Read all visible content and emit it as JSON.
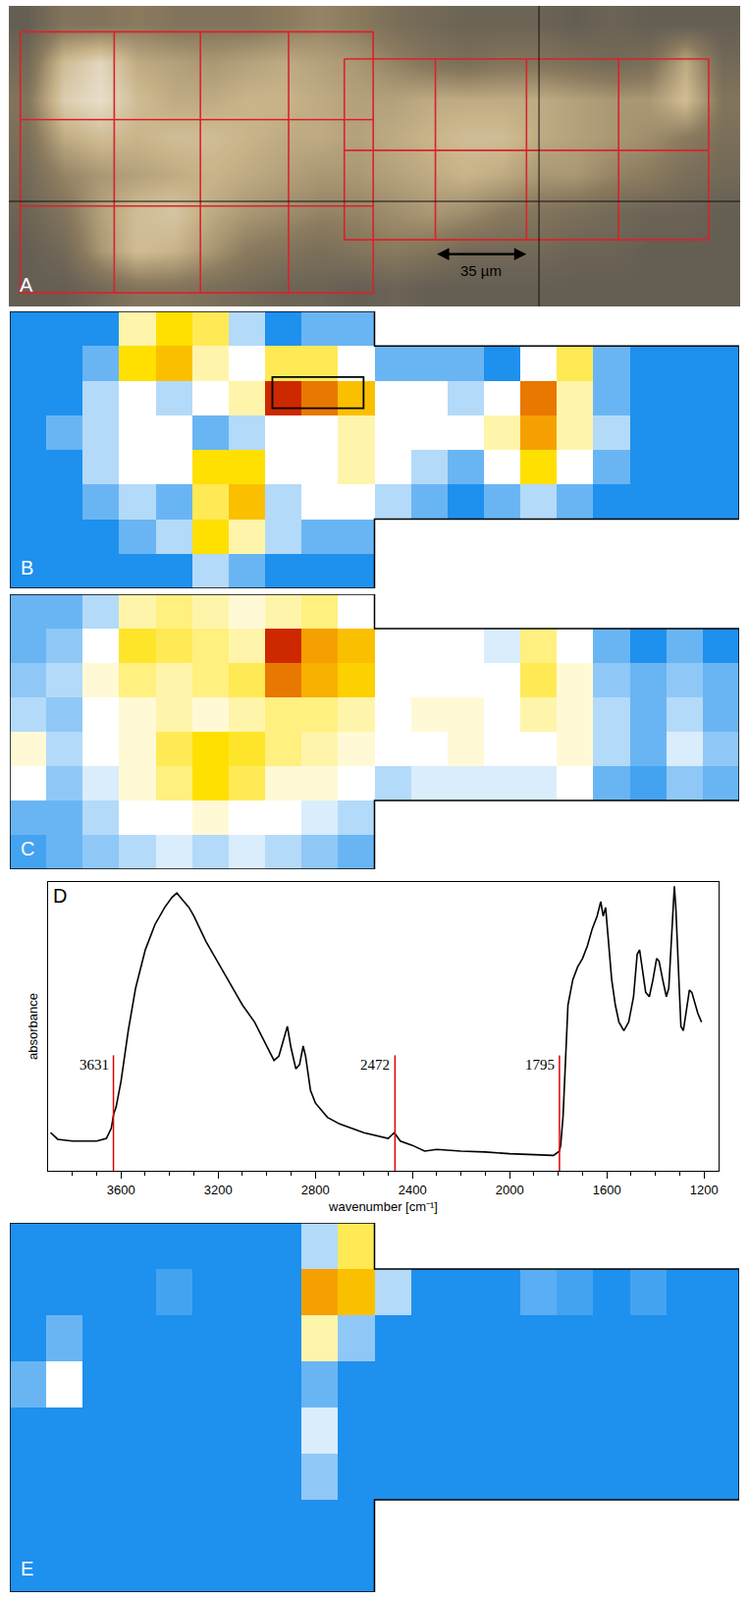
{
  "chart_data": [
    {
      "type": "image",
      "label": "A",
      "xlim": [
        0,
        281
      ],
      "ylim": [
        0,
        115
      ],
      "zlim": [
        0,
        1
      ],
      "tick_labels": false,
      "brightness": [
        [
          0.1,
          0.3,
          0.3,
          0.35,
          0.3,
          0.3,
          0.3,
          0.35,
          0.4,
          0.35,
          0.25,
          0.2,
          0.15,
          0.15,
          0.15,
          0.1,
          0.15,
          0.1,
          0.1,
          0.1
        ],
        [
          0.2,
          0.7,
          0.85,
          0.6,
          0.55,
          0.5,
          0.55,
          0.6,
          0.55,
          0.5,
          0.4,
          0.3,
          0.25,
          0.3,
          0.3,
          0.25,
          0.2,
          0.25,
          0.6,
          0.2
        ],
        [
          0.3,
          0.8,
          0.9,
          0.7,
          0.6,
          0.6,
          0.65,
          0.65,
          0.6,
          0.55,
          0.55,
          0.6,
          0.6,
          0.6,
          0.6,
          0.55,
          0.5,
          0.5,
          0.7,
          0.3
        ],
        [
          0.25,
          0.6,
          0.7,
          0.65,
          0.7,
          0.7,
          0.65,
          0.6,
          0.6,
          0.55,
          0.6,
          0.65,
          0.7,
          0.7,
          0.6,
          0.55,
          0.5,
          0.45,
          0.35,
          0.25
        ],
        [
          0.2,
          0.4,
          0.5,
          0.55,
          0.6,
          0.65,
          0.6,
          0.55,
          0.5,
          0.5,
          0.55,
          0.6,
          0.65,
          0.6,
          0.5,
          0.5,
          0.4,
          0.35,
          0.25,
          0.2
        ],
        [
          0.15,
          0.3,
          0.55,
          0.7,
          0.75,
          0.6,
          0.5,
          0.45,
          0.4,
          0.4,
          0.45,
          0.5,
          0.45,
          0.35,
          0.3,
          0.25,
          0.2,
          0.15,
          0.15,
          0.1
        ],
        [
          0.1,
          0.2,
          0.5,
          0.7,
          0.65,
          0.5,
          0.35,
          0.3,
          0.25,
          0.3,
          0.35,
          0.3,
          0.2,
          0.2,
          0.2,
          0.15,
          0.15,
          0.1,
          0.1,
          0.1
        ],
        [
          0.1,
          0.1,
          0.2,
          0.3,
          0.3,
          0.25,
          0.2,
          0.15,
          0.15,
          0.1,
          0.15,
          0.1,
          0.1,
          0.1,
          0.1,
          0.1,
          0.1,
          0.1,
          0.1,
          0.1
        ]
      ],
      "grids": [
        {
          "x": [
            4.4,
            40.5,
            73.6,
            107.5,
            140
          ],
          "y": [
            9.9,
            43.5,
            76.6,
            109.8
          ]
        },
        {
          "x": [
            128.9,
            163.9,
            198.9,
            234.3,
            268.9
          ],
          "y": [
            20.3,
            55.3,
            89.5
          ]
        }
      ],
      "crosshair": {
        "x": 203.7,
        "y": 74.8
      },
      "scale_bar": {
        "label": "35 µm",
        "length": 35,
        "x": 163.9,
        "y": 95
      }
    },
    {
      "type": "heatmap",
      "label": "B",
      "zlim": [
        0,
        1
      ],
      "tick_labels": false,
      "z": [
        [
          0,
          0,
          0,
          0.4,
          0.6,
          0.5,
          0.2,
          0,
          0.1,
          0.1,
          null,
          null,
          null,
          null,
          null,
          null,
          null,
          null,
          null,
          null
        ],
        [
          0,
          0,
          0.1,
          0.6,
          0.7,
          0.4,
          0.3,
          0.5,
          0.5,
          0.3,
          0.1,
          0.1,
          0.1,
          0,
          0.3,
          0.5,
          0.1,
          0,
          0,
          0
        ],
        [
          0,
          0,
          0.2,
          0.3,
          0.2,
          0.3,
          0.4,
          0.95,
          0.85,
          0.7,
          0.3,
          0.3,
          0.2,
          0.3,
          0.85,
          0.4,
          0.1,
          0,
          0,
          0
        ],
        [
          0,
          0.1,
          0.2,
          0.3,
          0.3,
          0.1,
          0.2,
          0.3,
          0.3,
          0.4,
          0.3,
          0.3,
          0.3,
          0.4,
          0.8,
          0.4,
          0.2,
          0,
          0,
          0
        ],
        [
          0,
          0,
          0.2,
          0.3,
          0.3,
          0.6,
          0.6,
          0.3,
          0.3,
          0.4,
          0.3,
          0.2,
          0.1,
          0.3,
          0.6,
          0.3,
          0.1,
          0,
          0,
          0
        ],
        [
          0,
          0,
          0.1,
          0.2,
          0.1,
          0.5,
          0.7,
          0.2,
          0.3,
          0.3,
          0.2,
          0.1,
          0,
          0.1,
          0.2,
          0.1,
          0,
          0,
          0,
          0
        ],
        [
          0,
          0,
          0,
          0.1,
          0.2,
          0.6,
          0.4,
          0.2,
          0.1,
          0.1,
          null,
          null,
          null,
          null,
          null,
          null,
          null,
          null,
          null,
          null
        ],
        [
          0,
          0,
          0,
          0,
          0,
          0.2,
          0.1,
          0,
          0,
          0,
          null,
          null,
          null,
          null,
          null,
          null,
          null,
          null,
          null,
          null
        ]
      ],
      "highlight_box": {
        "x": [
          6.7,
          9.2
        ],
        "y": [
          1.4,
          2.3
        ]
      }
    },
    {
      "type": "heatmap",
      "label": "C",
      "zlim": [
        0,
        1
      ],
      "tick_labels": false,
      "z": [
        [
          0.1,
          0.1,
          0.2,
          0.4,
          0.45,
          0.4,
          0.35,
          0.4,
          0.45,
          0.3,
          null,
          null,
          null,
          null,
          null,
          null,
          null,
          null,
          null,
          null
        ],
        [
          0.1,
          0.15,
          0.3,
          0.55,
          0.5,
          0.45,
          0.4,
          0.95,
          0.8,
          0.7,
          0.3,
          0.3,
          0.3,
          0.25,
          0.45,
          0.3,
          0.1,
          0,
          0.1,
          0
        ],
        [
          0.15,
          0.2,
          0.35,
          0.45,
          0.4,
          0.45,
          0.5,
          0.85,
          0.75,
          0.65,
          0.3,
          0.3,
          0.3,
          0.3,
          0.5,
          0.35,
          0.15,
          0.1,
          0.15,
          0.1
        ],
        [
          0.2,
          0.15,
          0.3,
          0.35,
          0.4,
          0.35,
          0.4,
          0.45,
          0.45,
          0.4,
          0.3,
          0.35,
          0.35,
          0.3,
          0.4,
          0.35,
          0.2,
          0.1,
          0.2,
          0.1
        ],
        [
          0.35,
          0.2,
          0.3,
          0.35,
          0.5,
          0.6,
          0.55,
          0.45,
          0.4,
          0.35,
          0.3,
          0.3,
          0.35,
          0.3,
          0.3,
          0.35,
          0.2,
          0.1,
          0.25,
          0.15
        ],
        [
          0.3,
          0.15,
          0.25,
          0.35,
          0.45,
          0.6,
          0.5,
          0.35,
          0.35,
          0.3,
          0.2,
          0.25,
          0.25,
          0.25,
          0.25,
          0.3,
          0.1,
          0.05,
          0.15,
          0.1
        ],
        [
          0.1,
          0.1,
          0.2,
          0.3,
          0.3,
          0.35,
          0.3,
          0.3,
          0.25,
          0.2,
          null,
          null,
          null,
          null,
          null,
          null,
          null,
          null,
          null,
          null
        ],
        [
          0.05,
          0.1,
          0.15,
          0.2,
          0.25,
          0.2,
          0.25,
          0.2,
          0.15,
          0.1,
          null,
          null,
          null,
          null,
          null,
          null,
          null,
          null,
          null,
          null
        ]
      ]
    },
    {
      "type": "line",
      "label": "D",
      "color": "#000000",
      "x": [
        3890,
        3860,
        3800,
        3700,
        3660,
        3640,
        3630,
        3620,
        3600,
        3570,
        3540,
        3500,
        3460,
        3420,
        3390,
        3370,
        3350,
        3320,
        3300,
        3250,
        3200,
        3150,
        3100,
        3050,
        3000,
        2970,
        2950,
        2930,
        2915,
        2900,
        2880,
        2865,
        2850,
        2840,
        2820,
        2800,
        2750,
        2700,
        2600,
        2500,
        2475,
        2450,
        2400,
        2350,
        2300,
        2200,
        2100,
        2000,
        1900,
        1820,
        1795,
        1790,
        1780,
        1770,
        1760,
        1740,
        1720,
        1700,
        1680,
        1660,
        1640,
        1625,
        1615,
        1605,
        1595,
        1580,
        1565,
        1550,
        1530,
        1510,
        1490,
        1475,
        1465,
        1455,
        1440,
        1425,
        1410,
        1395,
        1385,
        1370,
        1355,
        1345,
        1335,
        1328,
        1322,
        1316,
        1305,
        1295,
        1285,
        1270,
        1260,
        1250,
        1240,
        1225,
        1210
      ],
      "values": [
        0.132,
        0.109,
        0.103,
        0.103,
        0.112,
        0.147,
        0.197,
        0.221,
        0.309,
        0.485,
        0.632,
        0.765,
        0.853,
        0.912,
        0.947,
        0.962,
        0.941,
        0.912,
        0.882,
        0.794,
        0.721,
        0.647,
        0.574,
        0.515,
        0.432,
        0.382,
        0.397,
        0.456,
        0.5,
        0.426,
        0.353,
        0.368,
        0.432,
        0.397,
        0.279,
        0.235,
        0.185,
        0.162,
        0.132,
        0.112,
        0.132,
        0.103,
        0.088,
        0.068,
        0.074,
        0.068,
        0.065,
        0.059,
        0.056,
        0.053,
        0.068,
        0.088,
        0.191,
        0.397,
        0.574,
        0.662,
        0.706,
        0.735,
        0.779,
        0.838,
        0.882,
        0.932,
        0.882,
        0.912,
        0.809,
        0.662,
        0.574,
        0.515,
        0.485,
        0.515,
        0.603,
        0.75,
        0.765,
        0.706,
        0.618,
        0.603,
        0.662,
        0.735,
        0.726,
        0.662,
        0.603,
        0.632,
        0.779,
        0.926,
        0.985,
        0.912,
        0.662,
        0.5,
        0.485,
        0.574,
        0.626,
        0.618,
        0.588,
        0.544,
        0.515
      ],
      "xlim": [
        3900,
        1140
      ],
      "xticks": [
        3600,
        3200,
        2800,
        2400,
        2000,
        1600,
        1200
      ],
      "minor_xticks": [
        3800,
        3700,
        3500,
        3400,
        3300,
        3100,
        3000,
        2900,
        2700,
        2600,
        2500,
        2300,
        2200,
        2100,
        1900,
        1800,
        1700,
        1500,
        1400,
        1300
      ],
      "ylim": [
        0,
        1
      ],
      "tick_labels": "x",
      "x_label": "wavenumber [cm⁻¹]",
      "y_label": "absorbance",
      "vlines": {
        "x": [
          3631,
          2472,
          1795
        ],
        "labels": [
          "3631",
          "2472",
          "1795"
        ],
        "top": 0.4,
        "color": "#e00000"
      }
    },
    {
      "type": "heatmap",
      "label": "E",
      "zlim": [
        0,
        1
      ],
      "tick_labels": false,
      "z": [
        [
          0,
          0,
          0,
          0,
          0,
          0,
          0,
          0,
          0.2,
          0.5,
          null,
          null,
          null,
          null,
          null,
          null,
          null,
          null,
          null,
          null
        ],
        [
          0,
          0,
          0,
          0,
          0.05,
          0,
          0,
          0,
          0.8,
          0.7,
          0.2,
          0,
          0,
          0,
          0.08,
          0.05,
          0,
          0.05,
          0,
          0
        ],
        [
          0,
          0.1,
          0,
          0,
          0,
          0,
          0,
          0,
          0.4,
          0.15,
          0,
          0,
          0,
          0,
          0,
          0,
          0,
          0,
          0,
          0
        ],
        [
          0.1,
          0.3,
          0,
          0,
          0,
          0,
          0,
          0,
          0.1,
          0,
          0,
          0,
          0,
          0,
          0,
          0,
          0,
          0,
          0,
          0
        ],
        [
          0,
          0,
          0,
          0,
          0,
          0,
          0,
          0,
          0.25,
          0,
          0,
          0,
          0,
          0,
          0,
          0,
          0,
          0,
          0,
          0
        ],
        [
          0,
          0,
          0,
          0,
          0,
          0,
          0,
          0,
          0.15,
          0,
          0,
          0,
          0,
          0,
          0,
          0,
          0,
          0,
          0,
          0
        ],
        [
          0,
          0,
          0,
          0,
          0,
          0,
          0,
          0,
          0,
          0,
          null,
          null,
          null,
          null,
          null,
          null,
          null,
          null,
          null,
          null
        ],
        [
          0,
          0,
          0,
          0,
          0,
          0,
          0,
          0,
          0,
          0,
          null,
          null,
          null,
          null,
          null,
          null,
          null,
          null,
          null,
          null
        ]
      ]
    }
  ]
}
